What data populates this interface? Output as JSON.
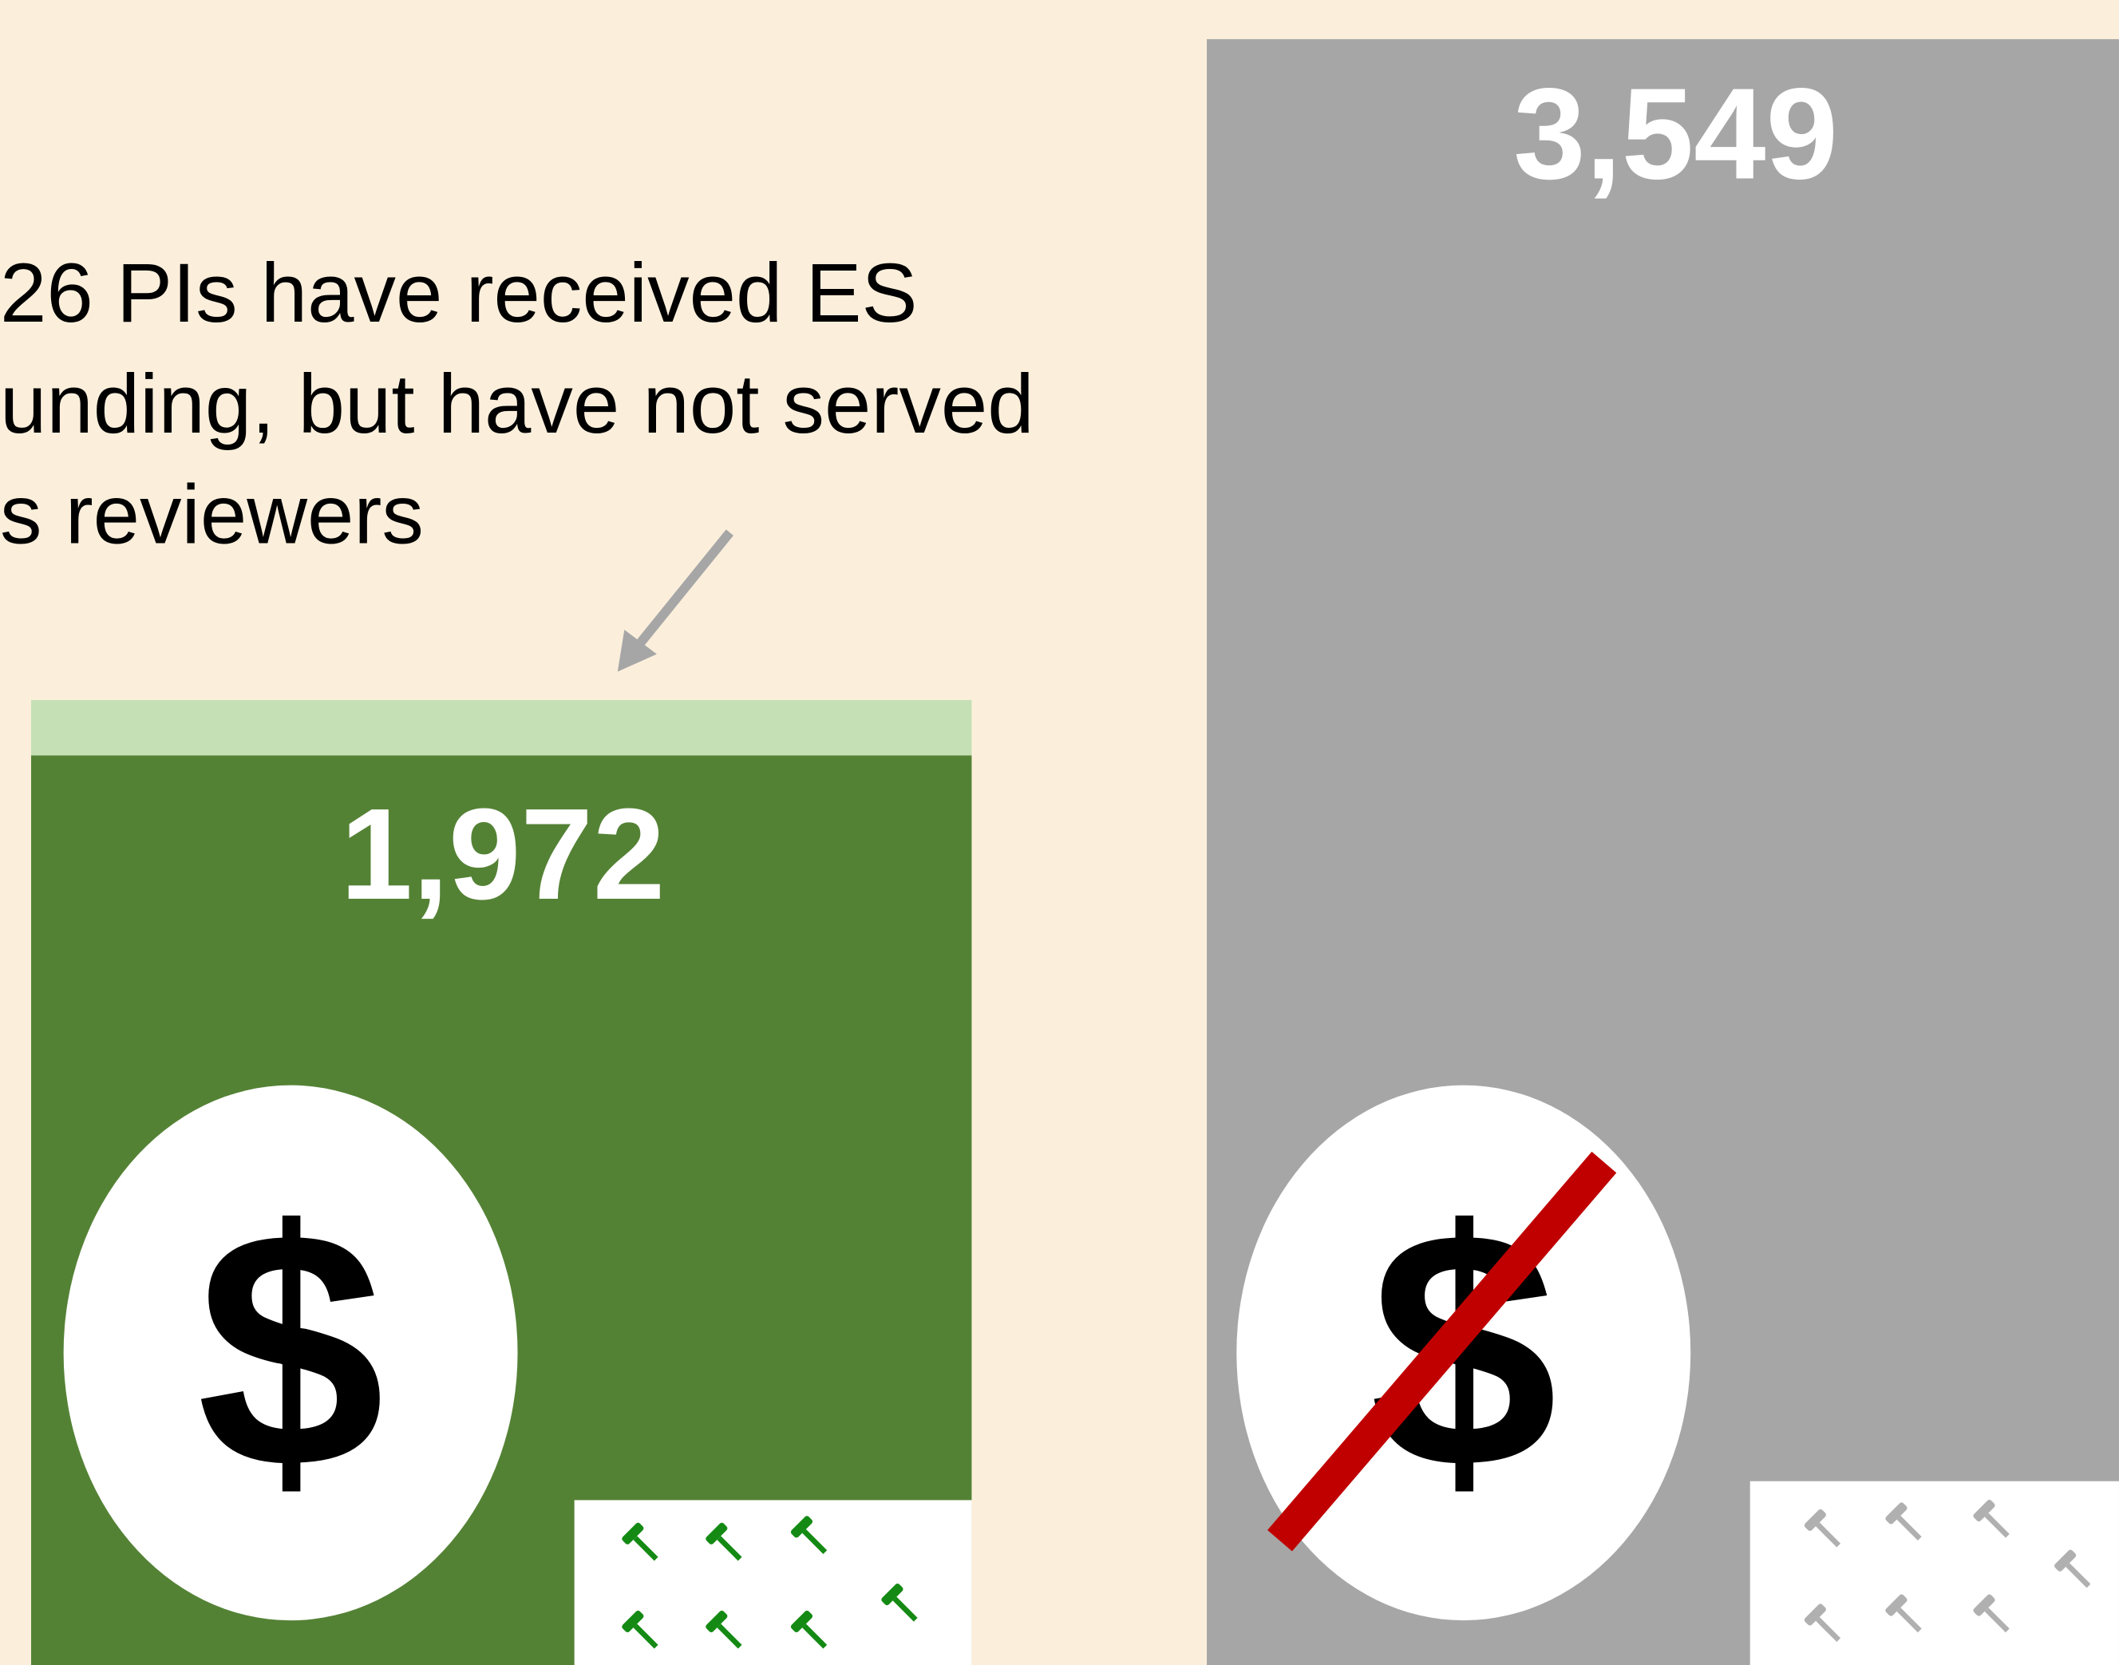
{
  "annotation": {
    "lines": [
      "26 PIs have received ES",
      "unding, but have not served",
      "s reviewers"
    ]
  },
  "groups": [
    {
      "count_label": "1,972",
      "icon_label": "$"
    },
    {
      "count_label": "3,549",
      "icon_label": "$"
    }
  ]
}
